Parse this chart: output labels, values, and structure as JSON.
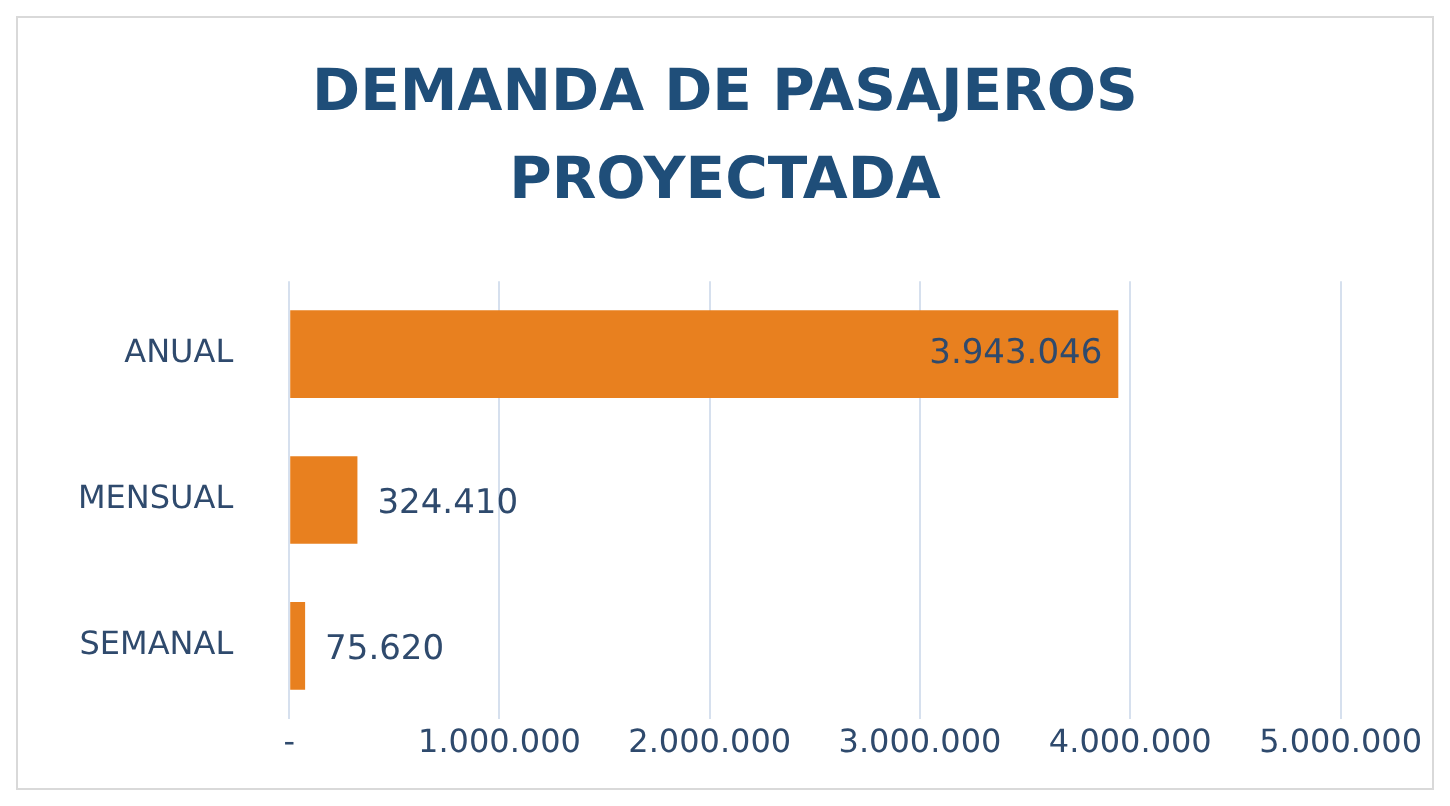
{
  "chart_data": {
    "type": "bar",
    "orientation": "horizontal",
    "title": "DEMANDA DE PASAJEROS PROYECTADA",
    "categories": [
      "ANUAL",
      "MENSUAL",
      "SEMANAL"
    ],
    "values": [
      3943046,
      324410,
      75620
    ],
    "value_labels": [
      "3.943.046",
      "324.410",
      "75.620"
    ],
    "color": "#e8801f",
    "xlim": [
      0,
      5000000
    ],
    "xticks": [
      {
        "value": 0,
        "label": "-"
      },
      {
        "value": 1000000,
        "label": "1.000.000"
      },
      {
        "value": 2000000,
        "label": "2.000.000"
      },
      {
        "value": 3000000,
        "label": "3.000.000"
      },
      {
        "value": 4000000,
        "label": "4.000.000"
      },
      {
        "value": 5000000,
        "label": "5.000.000"
      }
    ],
    "grid": "x"
  }
}
